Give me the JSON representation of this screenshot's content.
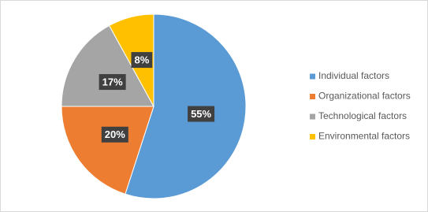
{
  "chart_data": {
    "type": "pie",
    "categories": [
      "Individual factors",
      "Organizational factors",
      "Technological factors",
      "Environmental factors"
    ],
    "values": [
      55,
      20,
      17,
      8
    ],
    "value_labels": [
      "55%",
      "20%",
      "17%",
      "8%"
    ],
    "colors": [
      "#5b9bd5",
      "#ed7d31",
      "#a5a5a5",
      "#ffc000"
    ],
    "legend": "right"
  }
}
